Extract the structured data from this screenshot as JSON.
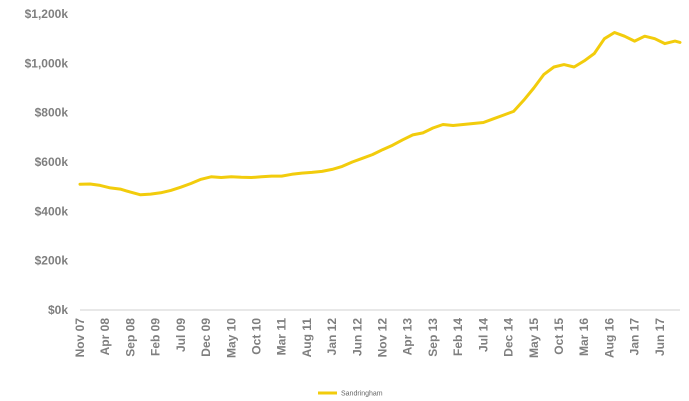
{
  "chart_data": {
    "type": "line",
    "title": "",
    "xlabel": "",
    "ylabel": "",
    "ylim": [
      0,
      1200
    ],
    "y_ticks": [
      {
        "value": 0,
        "label": "$0k"
      },
      {
        "value": 200,
        "label": "$200k"
      },
      {
        "value": 400,
        "label": "$400k"
      },
      {
        "value": 600,
        "label": "$600k"
      },
      {
        "value": 800,
        "label": "$800k"
      },
      {
        "value": 1000,
        "label": "$1,000k"
      },
      {
        "value": 1200,
        "label": "$1,200k"
      }
    ],
    "x_ticks": [
      "Nov 07",
      "Apr 08",
      "Sep 08",
      "Feb 09",
      "Jul 09",
      "Dec 09",
      "May 10",
      "Oct 10",
      "Mar 11",
      "Aug 11",
      "Jan 12",
      "Jun 12",
      "Nov 12",
      "Apr 13",
      "Sep 13",
      "Feb 14",
      "Jul 14",
      "Dec 14",
      "May 15",
      "Oct 15",
      "Mar 16",
      "Aug 16",
      "Jan 17",
      "Jun 17"
    ],
    "grid": false,
    "legend_position": "bottom-center",
    "series": [
      {
        "name": "Sandringham",
        "color": "#f2cc0c",
        "x": [
          "Nov 07",
          "Jan 08",
          "Mar 08",
          "May 08",
          "Jul 08",
          "Sep 08",
          "Nov 08",
          "Jan 09",
          "Mar 09",
          "May 09",
          "Jul 09",
          "Sep 09",
          "Nov 09",
          "Jan 10",
          "Mar 10",
          "May 10",
          "Jul 10",
          "Sep 10",
          "Nov 10",
          "Jan 11",
          "Mar 11",
          "May 11",
          "Jul 11",
          "Sep 11",
          "Nov 11",
          "Jan 12",
          "Mar 12",
          "May 12",
          "Jul 12",
          "Sep 12",
          "Nov 12",
          "Jan 13",
          "Mar 13",
          "May 13",
          "Jul 13",
          "Sep 13",
          "Nov 13",
          "Jan 14",
          "Mar 14",
          "May 14",
          "Jul 14",
          "Sep 14",
          "Nov 14",
          "Jan 15",
          "Mar 15",
          "May 15",
          "Jul 15",
          "Sep 15",
          "Nov 15",
          "Jan 16",
          "Mar 16",
          "May 16",
          "Jul 16",
          "Sep 16",
          "Nov 16",
          "Jan 17",
          "Mar 17",
          "May 17",
          "Jul 17",
          "Sep 17",
          "Oct 17"
        ],
        "values": [
          510,
          511,
          505,
          495,
          490,
          478,
          467,
          470,
          475,
          485,
          498,
          513,
          530,
          540,
          537,
          540,
          538,
          537,
          540,
          543,
          543,
          550,
          555,
          558,
          562,
          570,
          582,
          600,
          615,
          630,
          650,
          668,
          690,
          710,
          718,
          738,
          752,
          748,
          752,
          756,
          760,
          775,
          790,
          805,
          850,
          900,
          955,
          985,
          995,
          985,
          1010,
          1040,
          1100,
          1125,
          1110,
          1090,
          1110,
          1100,
          1080,
          1090,
          1085
        ]
      }
    ]
  }
}
